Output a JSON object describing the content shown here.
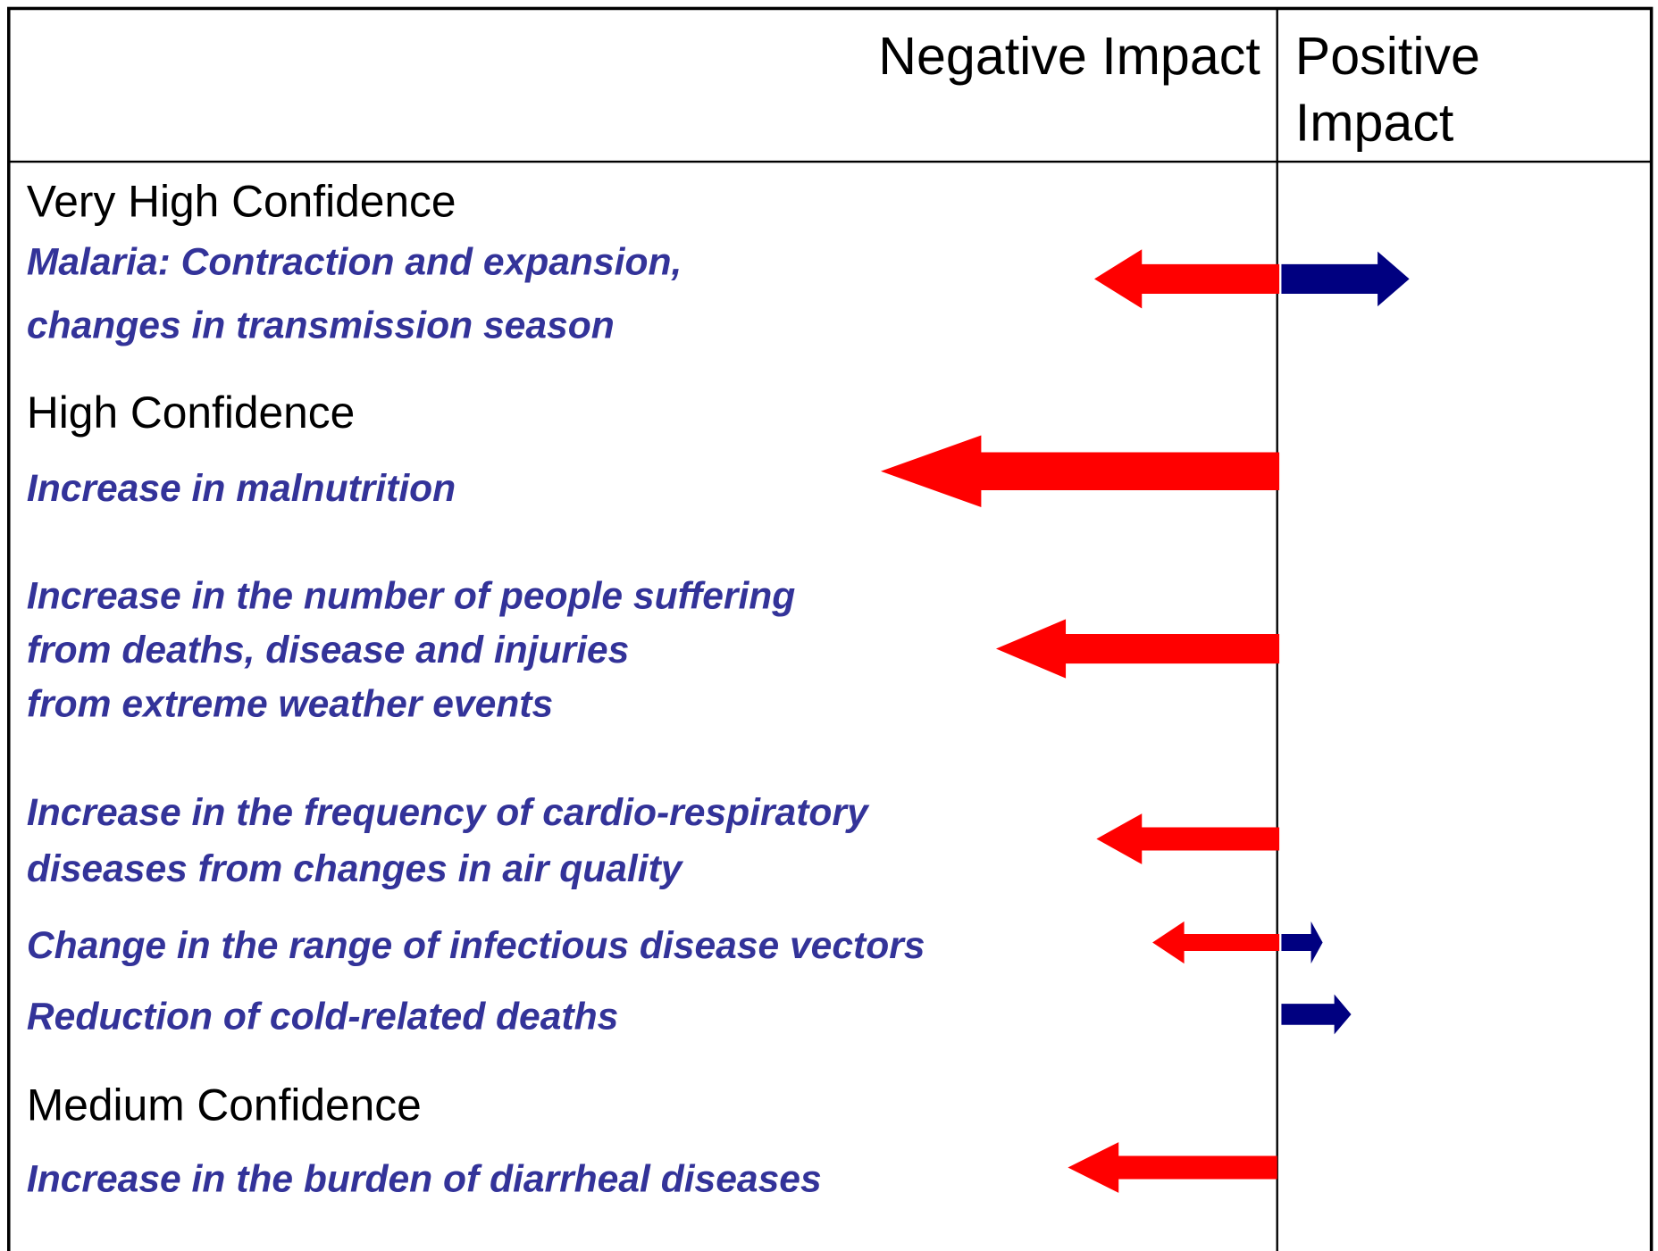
{
  "header": {
    "negative": "Negative Impact",
    "positive": [
      "Positive",
      "Impact"
    ]
  },
  "sections": [
    {
      "heading": "Very High Confidence",
      "items": [
        {
          "lines": [
            "Malaria: Contraction and expansion,",
            "changes in transmission season"
          ]
        }
      ]
    },
    {
      "heading": "High Confidence",
      "items": [
        {
          "lines": [
            "Increase in malnutrition"
          ]
        },
        {
          "lines": [
            "Increase in the number of people suffering",
            "from deaths, disease and injuries",
            "from extreme weather events"
          ]
        },
        {
          "lines": [
            "Increase in the frequency of cardio-respiratory",
            "diseases from changes in air quality"
          ]
        },
        {
          "lines": [
            "Change in the range of infectious disease vectors"
          ]
        },
        {
          "lines": [
            "Reduction of cold-related deaths"
          ]
        }
      ]
    },
    {
      "heading": "Medium Confidence",
      "items": [
        {
          "lines": [
            "Increase in the burden of diarrheal diseases"
          ]
        }
      ]
    }
  ]
}
